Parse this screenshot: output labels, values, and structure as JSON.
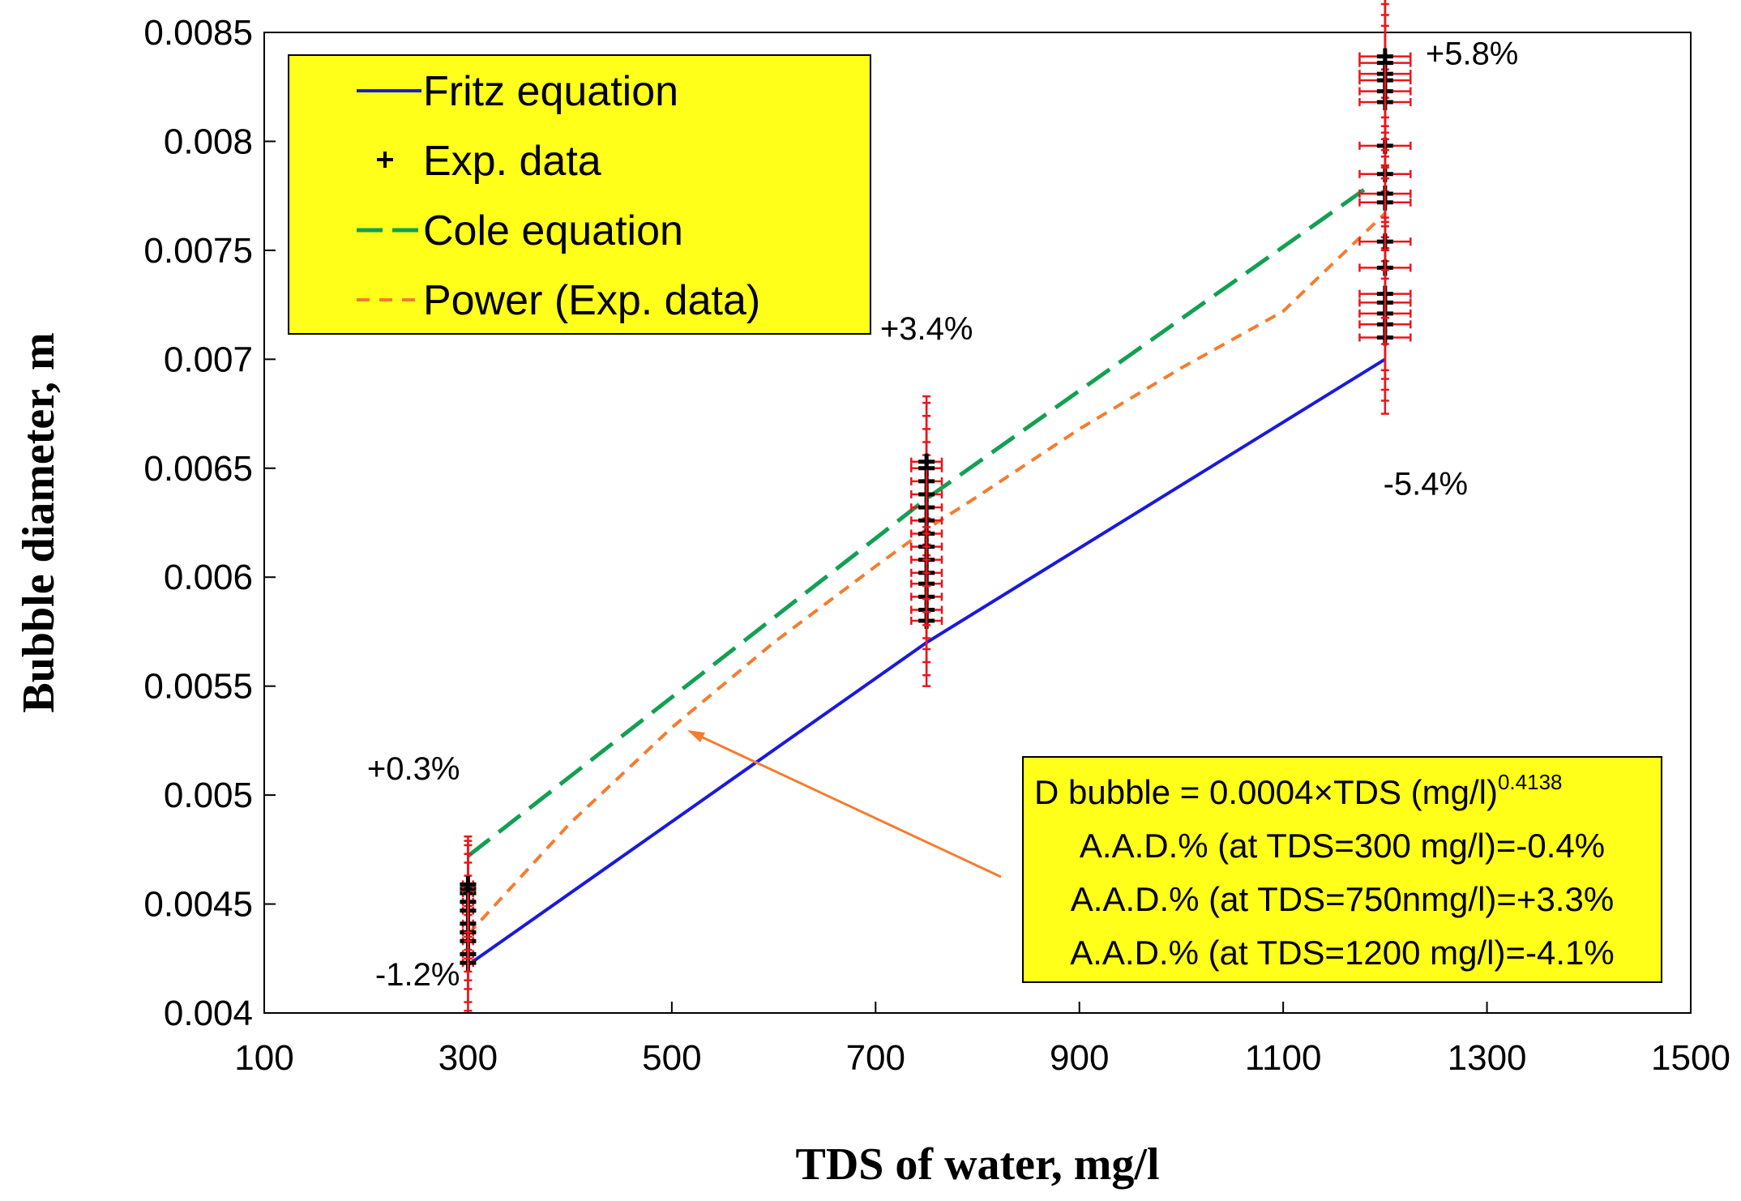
{
  "chart_data": {
    "type": "line",
    "title": "",
    "xlabel": "TDS of water, mg/l",
    "ylabel": "Bubble diameter, m",
    "xlim": [
      100,
      1500
    ],
    "ylim": [
      0.004,
      0.0085
    ],
    "x_ticks": [
      "100",
      "300",
      "500",
      "700",
      "900",
      "1100",
      "1300",
      "1500"
    ],
    "y_ticks": [
      "0.004",
      "0.0045",
      "0.005",
      "0.0055",
      "0.006",
      "0.0065",
      "0.007",
      "0.0075",
      "0.008",
      "0.0085"
    ],
    "series": [
      {
        "name": "Fritz equation",
        "style": "solid",
        "color": "#1a1adc",
        "x": [
          300,
          750,
          1200
        ],
        "y": [
          0.00422,
          0.0057,
          0.007
        ]
      },
      {
        "name": "Exp. data",
        "style": "markers",
        "color": "#000000",
        "error_color": "#e8161b",
        "groups": [
          {
            "x": 300,
            "y": [
              0.00423,
              0.00427,
              0.00433,
              0.00437,
              0.00441,
              0.00447,
              0.00451,
              0.00455,
              0.00457,
              0.00459
            ],
            "xerr": 5,
            "yerr": 0.00022
          },
          {
            "x": 750,
            "y": [
              0.0058,
              0.00585,
              0.00591,
              0.00597,
              0.00602,
              0.00608,
              0.00614,
              0.0062,
              0.00626,
              0.00632,
              0.00638,
              0.00644,
              0.0065,
              0.00653
            ],
            "xerr": 15,
            "yerr": 0.0003
          },
          {
            "x": 1200,
            "y": [
              0.0071,
              0.00716,
              0.00721,
              0.00726,
              0.0073,
              0.00742,
              0.00754,
              0.00772,
              0.00776,
              0.00785,
              0.00798,
              0.00818,
              0.00823,
              0.00828,
              0.00831,
              0.00836,
              0.00839
            ],
            "xerr": 25,
            "yerr": 0.00035
          }
        ]
      },
      {
        "name": "Cole equation",
        "style": "long-dash",
        "color": "#12a052",
        "x": [
          300,
          750,
          1180
        ],
        "y": [
          0.00472,
          0.00636,
          0.00778
        ]
      },
      {
        "name": "Power (Exp. data)",
        "style": "short-dash",
        "color": "#f47c30",
        "x": [
          300,
          400,
          500,
          600,
          700,
          750,
          800,
          900,
          1000,
          1100,
          1200
        ],
        "y": [
          0.00436,
          0.00487,
          0.00531,
          0.0057,
          0.00605,
          0.00622,
          0.00637,
          0.00668,
          0.00696,
          0.00722,
          0.00767
        ]
      }
    ],
    "annotations": [
      {
        "text": "+0.3%",
        "x": 300,
        "y_side": "above"
      },
      {
        "text": "-1.2%",
        "x": 300,
        "y_side": "below"
      },
      {
        "text": "+3.4%",
        "x": 750,
        "y_side": "above"
      },
      {
        "text": "+5.8%",
        "x": 1200,
        "y_side": "above"
      },
      {
        "text": "-5.4%",
        "x": 1200,
        "y_side": "below"
      }
    ],
    "equation_box": {
      "line1": "D bubble = 0.0004×TDS (mg/l)",
      "line1_superscript": "0.4138",
      "line2": "A.A.D.% (at TDS=300 mg/l)=-0.4%",
      "line3": "A.A.D.% (at TDS=750nmg/l)=+3.3%",
      "line4": "A.A.D.% (at TDS=1200 mg/l)=-4.1%"
    },
    "legend": {
      "position": "top-left",
      "items": [
        "Fritz equation",
        "Exp. data",
        "Cole equation",
        "Power (Exp. data)"
      ]
    },
    "colors": {
      "legend_bg": "#ffff1a",
      "box_bg": "#ffff1a",
      "arrow": "#f47c30"
    }
  }
}
